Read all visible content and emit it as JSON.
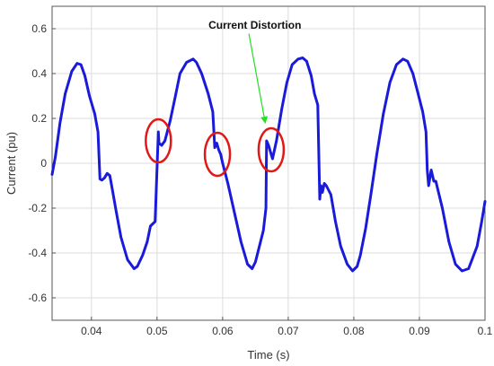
{
  "chart_data": {
    "type": "line",
    "title": "",
    "xlabel": "Time (s)",
    "ylabel": "Current (pu)",
    "xlim": [
      0.034,
      0.1
    ],
    "ylim": [
      -0.7,
      0.7
    ],
    "xticks": [
      0.04,
      0.05,
      0.06,
      0.07,
      0.08,
      0.09,
      0.1
    ],
    "xtick_labels": [
      "0.04",
      "0.05",
      "0.06",
      "0.07",
      "0.08",
      "0.09",
      "0.1"
    ],
    "yticks": [
      -0.6,
      -0.4,
      -0.2,
      0,
      0.2,
      0.4,
      0.6
    ],
    "ytick_labels": [
      "-0.6",
      "-0.4",
      "-0.2",
      "0",
      "0.2",
      "0.4",
      "0.6"
    ],
    "grid": true,
    "series": [
      {
        "color": "#1a1adb",
        "x": [
          0.034,
          0.0345,
          0.0352,
          0.036,
          0.037,
          0.0378,
          0.0384,
          0.039,
          0.0397,
          0.0405,
          0.041,
          0.0413,
          0.0416,
          0.042,
          0.0424,
          0.0428,
          0.0432,
          0.0438,
          0.0445,
          0.0455,
          0.0465,
          0.047,
          0.0478,
          0.0485,
          0.049,
          0.0497,
          0.0502,
          0.0503,
          0.0507,
          0.0512,
          0.052,
          0.0528,
          0.0535,
          0.0545,
          0.0555,
          0.056,
          0.0568,
          0.0578,
          0.0585,
          0.0588,
          0.0591,
          0.0594,
          0.0597,
          0.06,
          0.0608,
          0.0618,
          0.0628,
          0.0638,
          0.0645,
          0.065,
          0.0656,
          0.0662,
          0.0666,
          0.0667,
          0.067,
          0.0673,
          0.0676,
          0.0682,
          0.069,
          0.0698,
          0.0706,
          0.0715,
          0.0722,
          0.0728,
          0.0735,
          0.074,
          0.0745,
          0.0748,
          0.075,
          0.0752,
          0.0755,
          0.0758,
          0.0765,
          0.0772,
          0.078,
          0.079,
          0.0798,
          0.0805,
          0.081,
          0.0818,
          0.0826,
          0.0835,
          0.0845,
          0.0855,
          0.0865,
          0.0875,
          0.0882,
          0.089,
          0.0898,
          0.0905,
          0.091,
          0.0912,
          0.0914,
          0.0918,
          0.0922,
          0.0925,
          0.0935,
          0.0945,
          0.0955,
          0.0965,
          0.0975,
          0.0988,
          0.0995,
          0.1
        ],
        "y": [
          -0.05,
          0.03,
          0.18,
          0.31,
          0.41,
          0.445,
          0.44,
          0.39,
          0.3,
          0.22,
          0.14,
          -0.07,
          -0.075,
          -0.065,
          -0.045,
          -0.055,
          -0.12,
          -0.22,
          -0.33,
          -0.43,
          -0.47,
          -0.46,
          -0.41,
          -0.35,
          -0.28,
          -0.26,
          0.14,
          0.09,
          0.08,
          0.1,
          0.19,
          0.3,
          0.4,
          0.45,
          0.465,
          0.45,
          0.4,
          0.31,
          0.23,
          0.07,
          0.09,
          0.06,
          0.04,
          0.0,
          -0.09,
          -0.22,
          -0.35,
          -0.45,
          -0.47,
          -0.44,
          -0.37,
          -0.3,
          -0.2,
          0.1,
          0.08,
          0.05,
          0.02,
          0.1,
          0.24,
          0.36,
          0.44,
          0.465,
          0.47,
          0.455,
          0.39,
          0.31,
          0.26,
          -0.16,
          -0.1,
          -0.13,
          -0.09,
          -0.1,
          -0.14,
          -0.26,
          -0.37,
          -0.45,
          -0.48,
          -0.46,
          -0.41,
          -0.29,
          -0.14,
          0.04,
          0.22,
          0.36,
          0.44,
          0.465,
          0.455,
          0.4,
          0.31,
          0.23,
          0.14,
          -0.03,
          -0.1,
          -0.03,
          -0.08,
          -0.08,
          -0.2,
          -0.35,
          -0.45,
          -0.48,
          -0.47,
          -0.37,
          -0.26,
          -0.17
        ]
      }
    ],
    "annotations": [
      {
        "text": "Current Distortion",
        "color": "#22e022",
        "target": [
          0.0665,
          0.18
        ],
        "anchor": [
          0.064,
          0.61
        ]
      }
    ],
    "highlights": [
      {
        "label": "distortion-circle-1",
        "x": 0.0502,
        "y": 0.1,
        "color": "#e01818"
      },
      {
        "label": "distortion-circle-2",
        "x": 0.0592,
        "y": 0.04,
        "color": "#e01818"
      },
      {
        "label": "distortion-circle-3",
        "x": 0.0674,
        "y": 0.06,
        "color": "#e01818"
      }
    ]
  }
}
